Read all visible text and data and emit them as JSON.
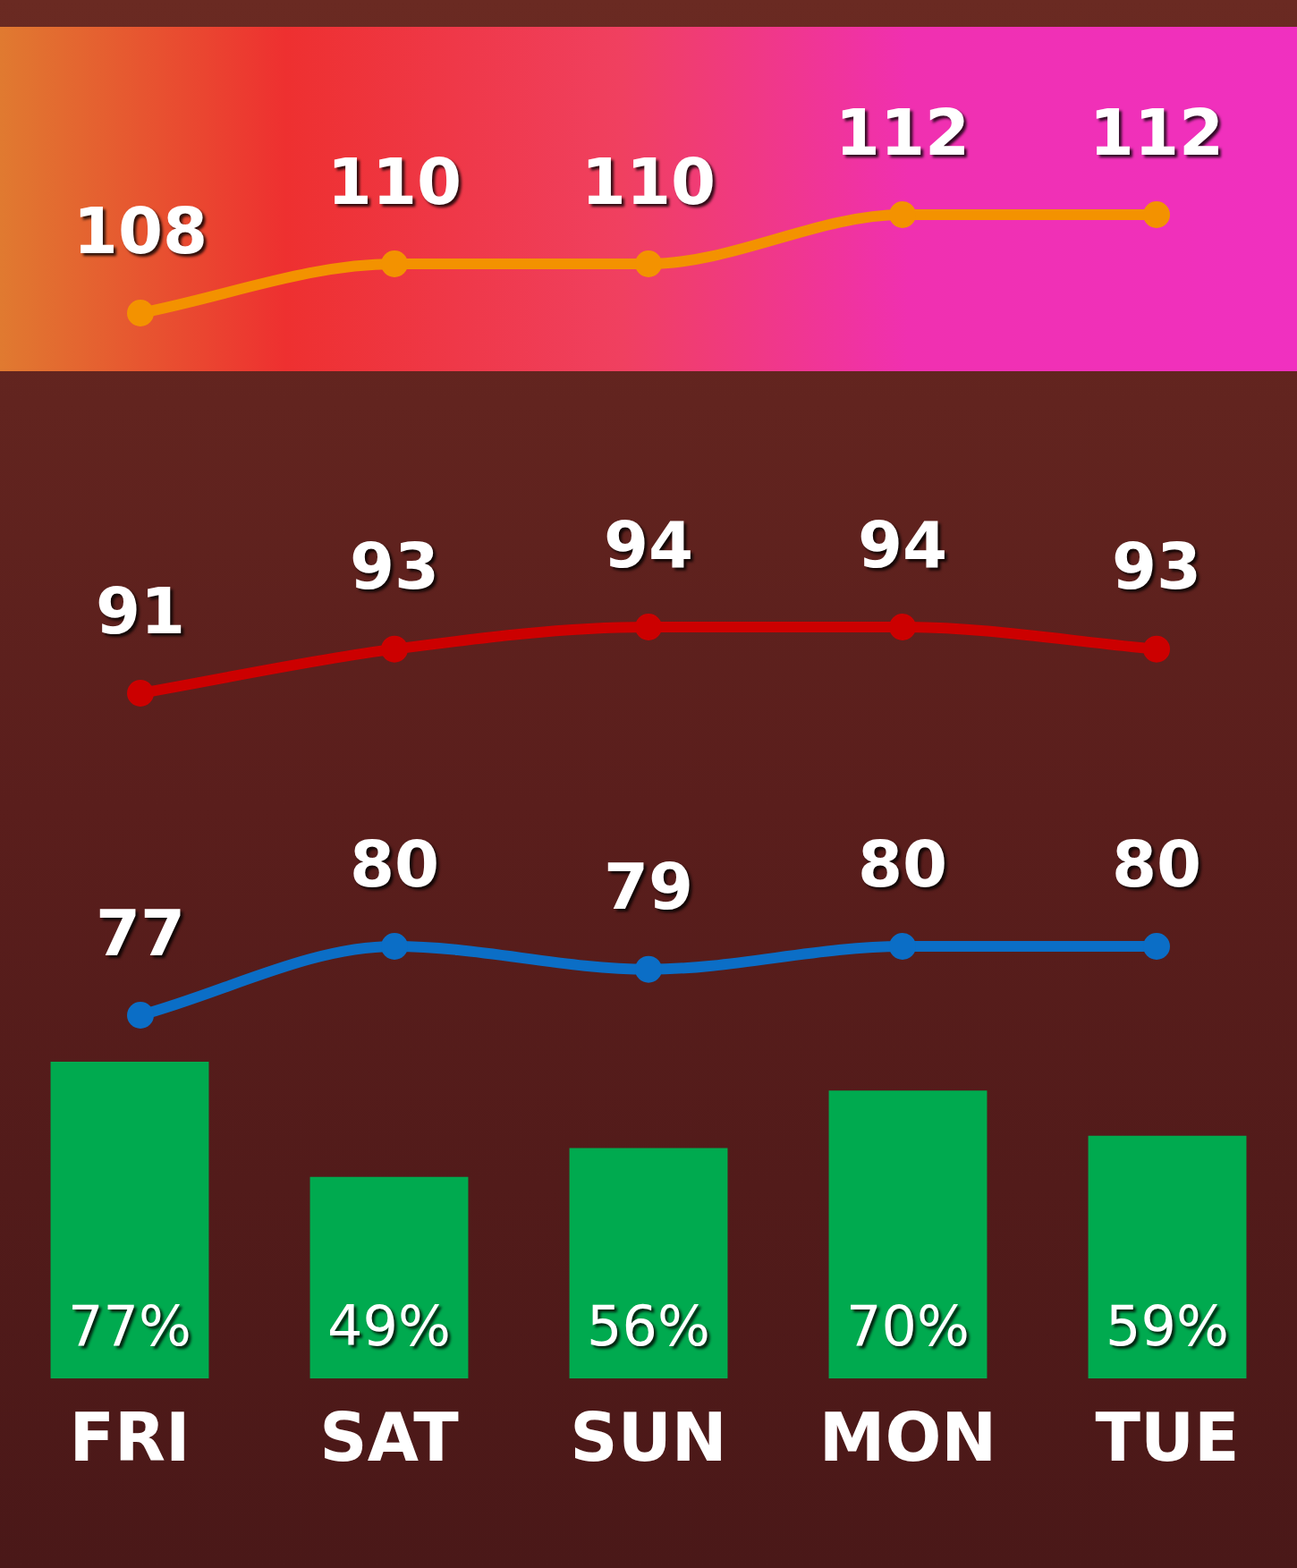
{
  "chart_data": [
    {
      "type": "line",
      "categories": [
        null,
        null,
        null,
        null,
        null
      ],
      "values": [
        108,
        110,
        110,
        112,
        112
      ],
      "color": "#f39200",
      "value_labels": [
        "108",
        "110",
        "110",
        "112",
        "112"
      ],
      "tick_labels": false,
      "marker": "circle",
      "line_style": "solid"
    },
    {
      "type": "line",
      "categories": [
        null,
        null,
        null,
        null,
        null
      ],
      "values": [
        91,
        93,
        94,
        94,
        93
      ],
      "color": "#cc0000",
      "value_labels": [
        "91",
        "93",
        "94",
        "94",
        "93"
      ],
      "tick_labels": false,
      "marker": "circle",
      "line_style": "solid"
    },
    {
      "type": "line",
      "categories": [
        null,
        null,
        null,
        null,
        null
      ],
      "values": [
        77,
        80,
        79,
        80,
        80
      ],
      "color": "#0b6ec6",
      "value_labels": [
        "77",
        "80",
        "79",
        "80",
        "80"
      ],
      "tick_labels": false,
      "marker": "circle",
      "line_style": "solid"
    },
    {
      "type": "bar",
      "categories": [
        "FRI",
        "SAT",
        "SUN",
        "MON",
        "TUE"
      ],
      "values": [
        77,
        49,
        56,
        70,
        59
      ],
      "color": "#00aa4f",
      "value_labels": [
        "77%",
        "49%",
        "56%",
        "70%",
        "59%"
      ],
      "tick_labels": "x"
    }
  ]
}
